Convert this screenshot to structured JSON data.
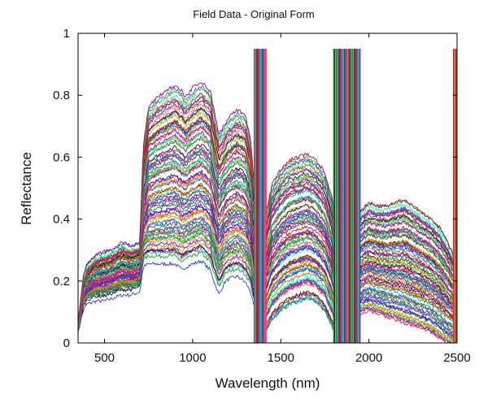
{
  "chart_data": {
    "type": "line",
    "title": "Field Data - Original Form",
    "xlabel": "Wavelength (nm)",
    "ylabel": "Reflectance",
    "xlim": [
      350,
      2500
    ],
    "ylim": [
      0,
      1
    ],
    "x_ticks": [
      500,
      1000,
      1500,
      2000,
      2500
    ],
    "y_ticks": [
      0,
      0.2,
      0.4,
      0.6,
      0.8,
      1
    ],
    "y_tick_labels": [
      "0",
      "0.2",
      "0.4",
      "0.6",
      "0.8",
      "1"
    ],
    "grid": false,
    "legend": "none",
    "series_count": 80,
    "envelope": {
      "x": [
        350,
        380,
        400,
        450,
        500,
        550,
        600,
        650,
        700,
        720,
        750,
        800,
        850,
        900,
        940,
        960,
        1000,
        1050,
        1100,
        1130,
        1150,
        1180,
        1200,
        1250,
        1280,
        1300,
        1330,
        1350
      ],
      "low": [
        0.05,
        0.12,
        0.14,
        0.15,
        0.15,
        0.16,
        0.17,
        0.17,
        0.18,
        0.26,
        0.27,
        0.27,
        0.27,
        0.27,
        0.25,
        0.26,
        0.27,
        0.28,
        0.25,
        0.2,
        0.17,
        0.21,
        0.22,
        0.23,
        0.22,
        0.21,
        0.18,
        0.12
      ],
      "high": [
        0.05,
        0.2,
        0.24,
        0.27,
        0.28,
        0.29,
        0.31,
        0.3,
        0.31,
        0.62,
        0.75,
        0.78,
        0.8,
        0.82,
        0.8,
        0.78,
        0.81,
        0.83,
        0.8,
        0.71,
        0.66,
        0.69,
        0.71,
        0.74,
        0.73,
        0.72,
        0.64,
        0.48
      ]
    },
    "envelope2": {
      "x": [
        1420,
        1450,
        1500,
        1550,
        1600,
        1650,
        1700,
        1750,
        1790,
        1810
      ],
      "low": [
        0.04,
        0.07,
        0.1,
        0.12,
        0.13,
        0.14,
        0.13,
        0.1,
        0.05,
        0.02
      ],
      "high": [
        0.42,
        0.5,
        0.55,
        0.58,
        0.59,
        0.6,
        0.58,
        0.54,
        0.46,
        0.38
      ]
    },
    "envelope3": {
      "x": [
        1950,
        2000,
        2050,
        2100,
        2150,
        2200,
        2250,
        2300,
        2350,
        2400,
        2450,
        2480
      ],
      "low": [
        0.1,
        0.11,
        0.1,
        0.09,
        0.08,
        0.07,
        0.06,
        0.05,
        0.04,
        0.02,
        0.0,
        0.0
      ],
      "high": [
        0.42,
        0.45,
        0.44,
        0.44,
        0.45,
        0.46,
        0.44,
        0.42,
        0.4,
        0.37,
        0.32,
        0.28
      ]
    },
    "absorption_bands": [
      [
        1350,
        1420
      ],
      [
        1800,
        1950
      ],
      [
        2480,
        2500
      ]
    ],
    "palette": [
      "#1f3fe0",
      "#10a010",
      "#e01515",
      "#10c0c0",
      "#c010c0",
      "#b0b000",
      "#202020",
      "#ff8000",
      "#8000ff",
      "#008080",
      "#804000",
      "#00ff80",
      "#ff0080",
      "#0080ff",
      "#60a000",
      "#a00060"
    ]
  }
}
